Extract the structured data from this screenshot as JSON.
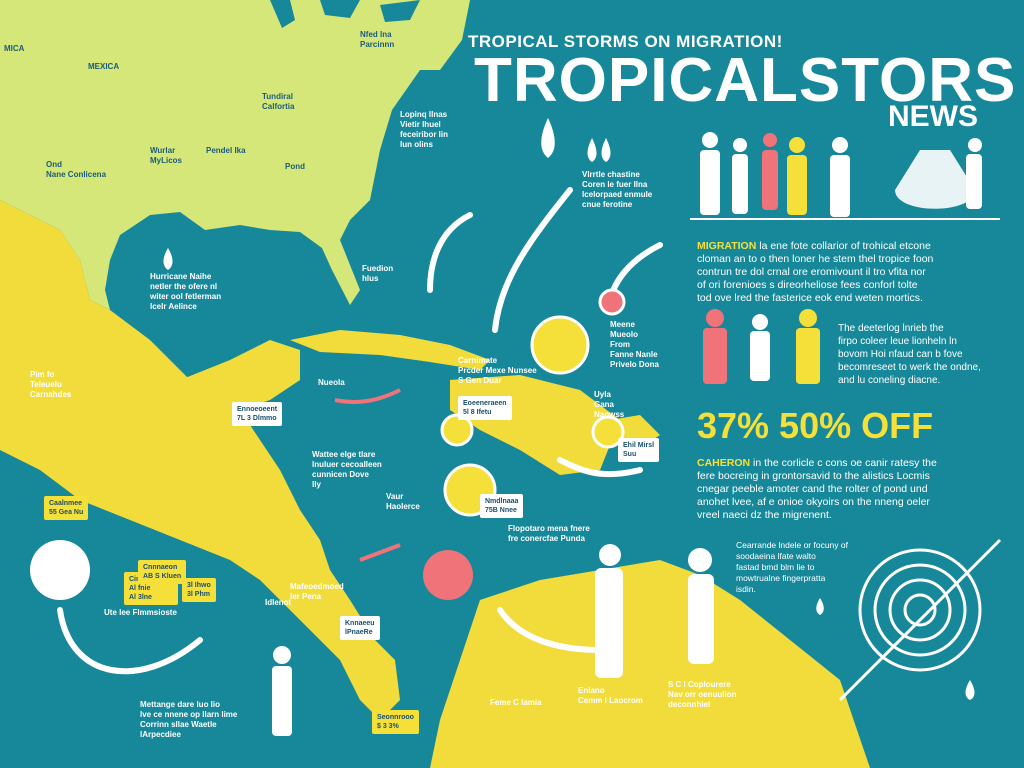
{
  "header": {
    "kicker": "TROPICAL STORMS ON MIGRATION!",
    "title": "TROPICALSTORS",
    "subtitle": "NEWS"
  },
  "colors": {
    "ocean": "#17889a",
    "land": "#d6e77a",
    "land_south": "#f2dc3c",
    "accent_pink": "#f0737a",
    "accent_yellow": "#f5e03a"
  },
  "paragraphs": {
    "migration": {
      "lead": "MIGRATION",
      "text": " la ene fote collarior of trohical etcone\ncloman an to o then loner he stem thel tropice foon\ncontrun tre dol crnal ore eromivount il tro vfita nor\nof ori forenioes s direorheliose fees conforl tolte\ntod ove lred the fasterice eok end weten mortics."
    },
    "deeterlog": "The deeterlog lnrieb the\nfirpo coleer leue lionheln ln\nbovom Hoi nfaud can b fove\nbecomreseet to werk the ondne,\nand lu coneling diacne.",
    "stat": "37% 50%   OFF",
    "cameron": {
      "lead": "CAHERON",
      "text": " in the corlicle c cons oe canir ratesy the\nfere bocreing in grontorsavid to the alistics Locmis\ncnegar peeble amoter cand the rolter of pond und\nanohet lvee, af e onioe okyoirs on the nneng oeler\nvreel naeci dz the migrenent."
    },
    "coerande": "Cearrande lndele or focuny of\nsoodaeina lfate walto\nfastad bmd blm lie to\nmowtrualne fingerpratta\nisdin."
  },
  "map_labels": [
    "MICA",
    "MEXICA",
    "Nfed lna\nParcinnn",
    "Tundiral\nCalfortia",
    "Wurlar\nMyLicos",
    "Pendel Ika",
    "Ond\nNane Conlicena",
    "Pond",
    "Lopinq llnas\nVietir lhuel\nfeceiribor lin\nlun olins",
    "Vlrrtle chastine\nCoren le fuer llna\nlcelorpaed enmule\ncnue ferotine",
    "Hurricane Naihe\nnetler the ofere nl\nwiter ool fetlerman\nlcelr Aelince",
    "Fuedion\nhlus",
    "Pim fo\nTeleuelu\nCarnahdes",
    "Nueola",
    "Carnimate\nPrcder Mexe Nunsee\nS Gen Duar",
    "Meene\nMueolo\nFrom\nFanne Nanle\nPrivelo Dona",
    "Uyla\nGana\nNaowss",
    "Wattee elge tlare\nlnuluer cecoalleen\ncunnicen Dove\nlly",
    "Vaur\nHaolerce",
    "Flopotaro mena fnere\nfre conercfae Punda",
    "Mafeoedmoed\nler Pena",
    "Idlenot",
    "Ute lee Flmmsioste",
    "Mettange dare luo lio\nlve ce nnene op llarn lime\nCorrinn sllae Waetle\nlArpecdiee",
    "Feme C lamia",
    "Enlano\nCemm l Laocrom",
    "S C l Coplourere\nNav orr oenuulion\ndeconnhiel"
  ],
  "cards": [
    "Ennoeoeent\n7L 3 Dlmmo",
    "Eoeeneraeen\n5l 8 Ifetu",
    "Cinoloaneree\nAl fnie\nAl 3lne",
    "Nmdlnaaa\n75B Nnee",
    "Caalnmee\n55 Gea Nu",
    "Cnnnaeon\nAB S Kluen",
    "3l Ihwo\n3l Phm",
    "Knnaeeu\nlPnaeRe",
    "Seonnrooo\n$ 3 3%",
    "Ehil Mirsl\nSuu"
  ]
}
